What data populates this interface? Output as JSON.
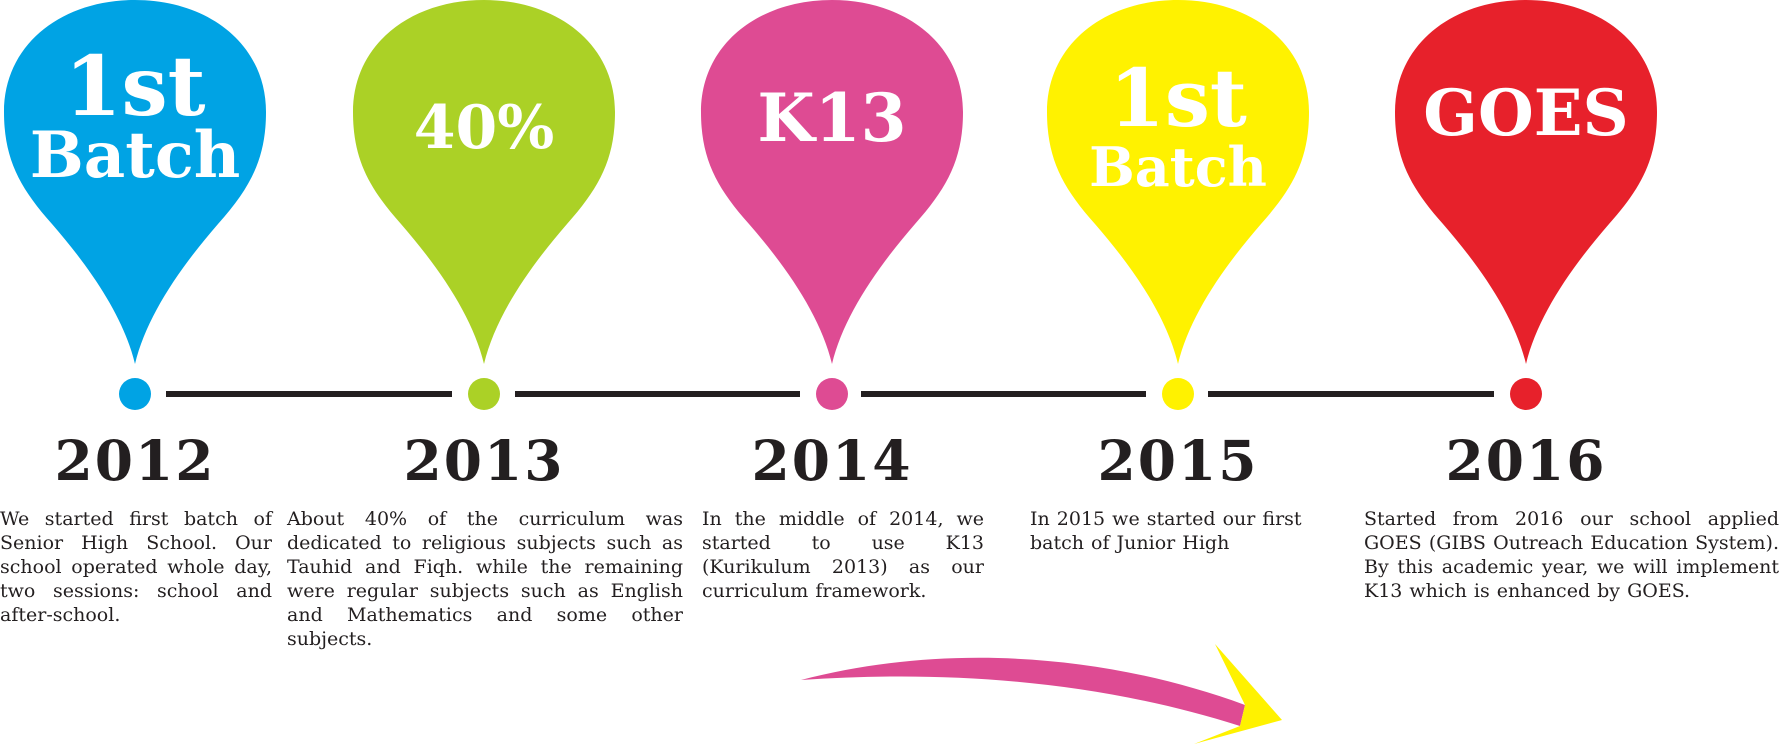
{
  "timeline": {
    "milestones": [
      {
        "label_lines": [
          "1st",
          "Batch"
        ],
        "year": "2012",
        "description": "We started first batch of Senior High School. Our school operated whole day, two sessions: school and after-school.",
        "color": "#00a3e4"
      },
      {
        "label_lines": [
          "40%"
        ],
        "year": "2013",
        "description": "About 40% of the curriculum was dedicated to religious subjects such as Tauhid and Fiqh. while the remaining were regular subjects such as English and Mathematics and some other subjects.",
        "color": "#abd126"
      },
      {
        "label_lines": [
          "K13"
        ],
        "year": "2014",
        "description": "In the middle of 2014, we started to use K13 (Kurikulum 2013) as our curriculum framework.",
        "color": "#de4b93"
      },
      {
        "label_lines": [
          "1st",
          "Batch"
        ],
        "year": "2015",
        "description": "In 2015 we started our first batch of Junior High",
        "color": "#fff200"
      },
      {
        "label_lines": [
          "GOES"
        ],
        "year": "2016",
        "description": "Started from 2016 our school applied GOES (GIBS Outreach Education System). By this academic year, we will implement K13 which is enhanced by GOES.",
        "color": "#e7212b"
      }
    ],
    "line_color": "#231f20",
    "arrow": {
      "body_color": "#de4b93",
      "head_color": "#fff200"
    }
  }
}
